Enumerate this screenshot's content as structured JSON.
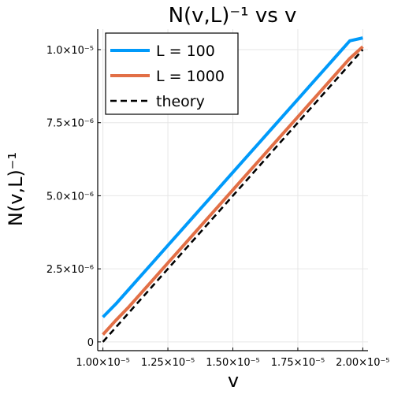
{
  "chart_data": {
    "type": "line",
    "title": "N(v,L)⁻¹ vs v",
    "xlabel": "v",
    "ylabel": "N(v,L)⁻¹",
    "xlim": [
      9.8e-06,
      2.02e-05
    ],
    "ylim": [
      -3e-07,
      1.07e-05
    ],
    "x_ticks": [
      1e-05,
      1.25e-05,
      1.5e-05,
      1.75e-05,
      2e-05
    ],
    "x_tick_labels": [
      "1.00×10⁻⁵",
      "1.25×10⁻⁵",
      "1.50×10⁻⁵",
      "1.75×10⁻⁵",
      "2.00×10⁻⁵"
    ],
    "y_ticks": [
      0,
      2.5e-06,
      5e-06,
      7.5e-06,
      1e-05
    ],
    "y_tick_labels": [
      "0",
      "2.5×10⁻⁶",
      "5.0×10⁻⁶",
      "7.5×10⁻⁶",
      "1.0×10⁻⁵"
    ],
    "grid": true,
    "legend_position": "top-left",
    "series": [
      {
        "name": "L = 100",
        "color": "#009AFA",
        "dash": "solid",
        "x": [
          1e-05,
          1.05e-05,
          1.1e-05,
          1.15e-05,
          1.2e-05,
          1.25e-05,
          1.3e-05,
          1.35e-05,
          1.4e-05,
          1.45e-05,
          1.5e-05,
          1.55e-05,
          1.6e-05,
          1.65e-05,
          1.7e-05,
          1.75e-05,
          1.8e-05,
          1.85e-05,
          1.9e-05,
          1.95e-05,
          2e-05
        ],
        "y": [
          8.5e-07,
          1.3e-06,
          1.8e-06,
          2.3e-06,
          2.8e-06,
          3.3e-06,
          3.8e-06,
          4.3e-06,
          4.8e-06,
          5.3e-06,
          5.8e-06,
          6.3e-06,
          6.8e-06,
          7.3e-06,
          7.8e-06,
          8.3e-06,
          8.8e-06,
          9.3e-06,
          9.8e-06,
          1.03e-05,
          1.04e-05
        ]
      },
      {
        "name": "L = 1000",
        "color": "#E26F46",
        "dash": "solid",
        "x": [
          1e-05,
          1.05e-05,
          1.1e-05,
          1.15e-05,
          1.2e-05,
          1.25e-05,
          1.3e-05,
          1.35e-05,
          1.4e-05,
          1.45e-05,
          1.5e-05,
          1.55e-05,
          1.6e-05,
          1.65e-05,
          1.7e-05,
          1.75e-05,
          1.8e-05,
          1.85e-05,
          1.9e-05,
          1.95e-05,
          2e-05
        ],
        "y": [
          2.5e-07,
          7.4e-07,
          1.2e-06,
          1.7e-06,
          2.2e-06,
          2.7e-06,
          3.2e-06,
          3.7e-06,
          4.2e-06,
          4.7e-06,
          5.2e-06,
          5.7e-06,
          6.2e-06,
          6.7e-06,
          7.2e-06,
          7.7e-06,
          8.2e-06,
          8.7e-06,
          9.2e-06,
          9.7e-06,
          1.01e-05
        ]
      },
      {
        "name": "theory",
        "color": "#000000",
        "dash": "dashed",
        "x": [
          1e-05,
          2e-05
        ],
        "y": [
          0,
          1e-05
        ]
      }
    ]
  }
}
